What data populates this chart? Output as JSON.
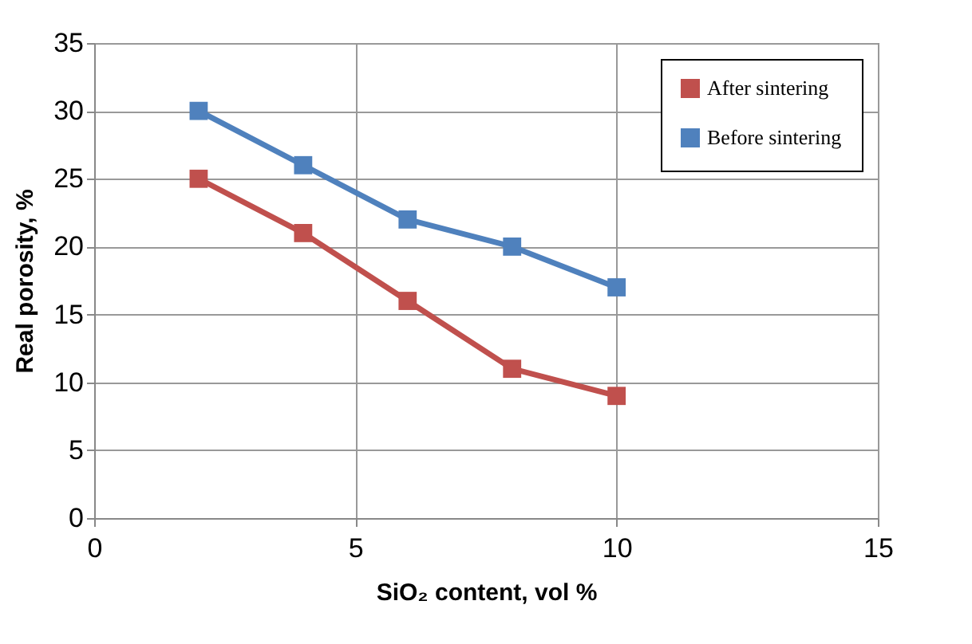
{
  "chart_data": {
    "type": "line",
    "xlabel": "SiO₂ content,  vol %",
    "ylabel": "Real porosity,  %",
    "x": [
      2,
      4,
      6,
      8,
      10
    ],
    "series": [
      {
        "name": "After sintering",
        "color": "#c0504d",
        "values": [
          25,
          21,
          16,
          11,
          9
        ]
      },
      {
        "name": "Before sintering",
        "color": "#4f81bd",
        "values": [
          30,
          26,
          22,
          20,
          17
        ]
      }
    ],
    "xlim": [
      0,
      15
    ],
    "xticks": [
      0,
      5,
      10,
      15
    ],
    "ylim": [
      0,
      35
    ],
    "yticks": [
      0,
      5,
      10,
      15,
      20,
      25,
      30,
      35
    ],
    "grid": true,
    "legend": "top right",
    "marker": "square",
    "line_style": "solid"
  }
}
